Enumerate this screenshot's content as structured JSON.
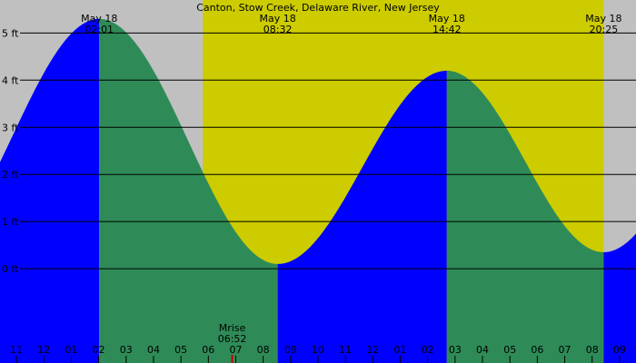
{
  "chart_data": {
    "type": "area",
    "title": "Canton, Stow Creek, Delaware River, New Jersey",
    "unit": "ft",
    "colors": {
      "night": "#c0c0c0",
      "day": "#cccc00",
      "rising": "#0000ff",
      "falling": "#2e8b57",
      "grid": "#000000",
      "moonrise_mark": "#cc0000"
    },
    "time_range_hours": [
      -1.6,
      21.6
    ],
    "ylim": [
      -2.0,
      5.7
    ],
    "y_ticks": [
      {
        "value": 5,
        "label": "5 ft"
      },
      {
        "value": 4,
        "label": "4 ft"
      },
      {
        "value": 3,
        "label": "3 ft"
      },
      {
        "value": 2,
        "label": "2 ft"
      },
      {
        "value": 1,
        "label": "1 ft"
      },
      {
        "value": 0,
        "label": "0 ft"
      }
    ],
    "daylight": {
      "start": 5.8,
      "end": 20.42
    },
    "extremes": [
      {
        "time": 2.02,
        "height": 5.3,
        "type": "high",
        "date": "May 18",
        "time_label": "02:01"
      },
      {
        "time": 8.53,
        "height": 0.1,
        "type": "low",
        "date": "May 18",
        "time_label": "08:32"
      },
      {
        "time": 14.7,
        "height": 4.2,
        "type": "high",
        "date": "May 18",
        "time_label": "14:42"
      },
      {
        "time": 20.42,
        "height": 0.35,
        "type": "low",
        "date": "May 18",
        "time_label": "20:25"
      }
    ],
    "moonrise": {
      "label": "Mrise",
      "time_label": "06:52",
      "time": 6.87
    },
    "hour_ticks": [
      {
        "time": -1,
        "label": "11"
      },
      {
        "time": 0,
        "label": "12"
      },
      {
        "time": 1,
        "label": "01"
      },
      {
        "time": 2,
        "label": "02"
      },
      {
        "time": 3,
        "label": "03"
      },
      {
        "time": 4,
        "label": "04"
      },
      {
        "time": 5,
        "label": "05"
      },
      {
        "time": 6,
        "label": "06"
      },
      {
        "time": 7,
        "label": "07"
      },
      {
        "time": 8,
        "label": "08"
      },
      {
        "time": 9,
        "label": "09"
      },
      {
        "time": 10,
        "label": "10"
      },
      {
        "time": 11,
        "label": "11"
      },
      {
        "time": 12,
        "label": "12"
      },
      {
        "time": 13,
        "label": "01"
      },
      {
        "time": 14,
        "label": "02"
      },
      {
        "time": 15,
        "label": "03"
      },
      {
        "time": 16,
        "label": "04"
      },
      {
        "time": 17,
        "label": "05"
      },
      {
        "time": 18,
        "label": "06"
      },
      {
        "time": 19,
        "label": "07"
      },
      {
        "time": 20,
        "label": "08"
      },
      {
        "time": 21,
        "label": "09"
      }
    ]
  }
}
